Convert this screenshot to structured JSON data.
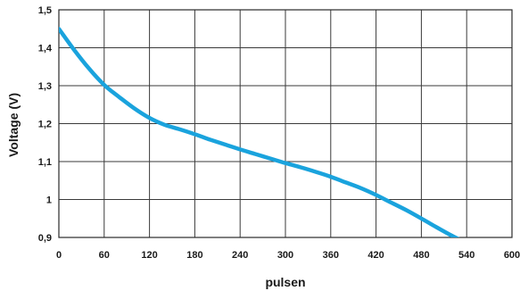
{
  "chart_data": {
    "type": "line",
    "title": "",
    "xlabel": "pulsen",
    "ylabel": "Voltage (V)",
    "xlim": [
      0,
      600
    ],
    "ylim": [
      0.9,
      1.5
    ],
    "grid": true,
    "x_ticks": [
      "0",
      "60",
      "120",
      "180",
      "240",
      "300",
      "360",
      "420",
      "480",
      "540",
      "600"
    ],
    "y_ticks": [
      "0,9",
      "1",
      "1,1",
      "1,2",
      "1,3",
      "1,4",
      "1,5"
    ],
    "x_tick_values": [
      0,
      60,
      120,
      180,
      240,
      300,
      360,
      420,
      480,
      540,
      600
    ],
    "y_tick_values": [
      0.9,
      1.0,
      1.1,
      1.2,
      1.3,
      1.4,
      1.5
    ],
    "series": [
      {
        "color": "#1aa3dd",
        "x": [
          0,
          20,
          40,
          60,
          80,
          100,
          120,
          140,
          160,
          180,
          200,
          220,
          240,
          260,
          280,
          300,
          320,
          340,
          360,
          380,
          400,
          420,
          440,
          460,
          480,
          500,
          520,
          530
        ],
        "y": [
          1.45,
          1.395,
          1.345,
          1.302,
          1.27,
          1.24,
          1.215,
          1.197,
          1.185,
          1.172,
          1.158,
          1.145,
          1.132,
          1.12,
          1.108,
          1.096,
          1.085,
          1.073,
          1.06,
          1.045,
          1.03,
          1.012,
          0.992,
          0.972,
          0.95,
          0.927,
          0.905,
          0.895
        ]
      }
    ]
  }
}
